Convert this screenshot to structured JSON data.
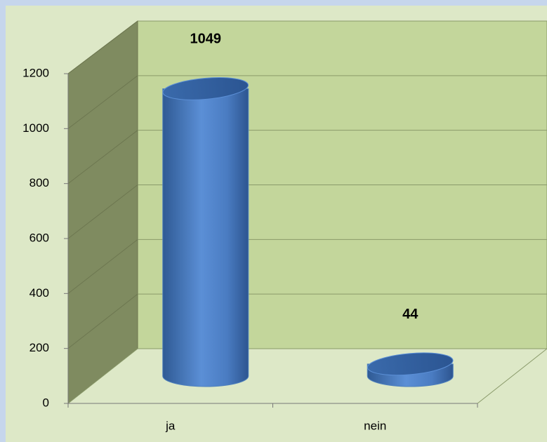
{
  "chart_data": {
    "type": "bar3d",
    "categories": [
      "ja",
      "nein"
    ],
    "values": [
      1049,
      44
    ],
    "color": "#4f81bd",
    "ylim": [
      0,
      1200
    ],
    "yticks": [
      0,
      200,
      400,
      600,
      800,
      1000,
      1200
    ],
    "grid": true
  }
}
